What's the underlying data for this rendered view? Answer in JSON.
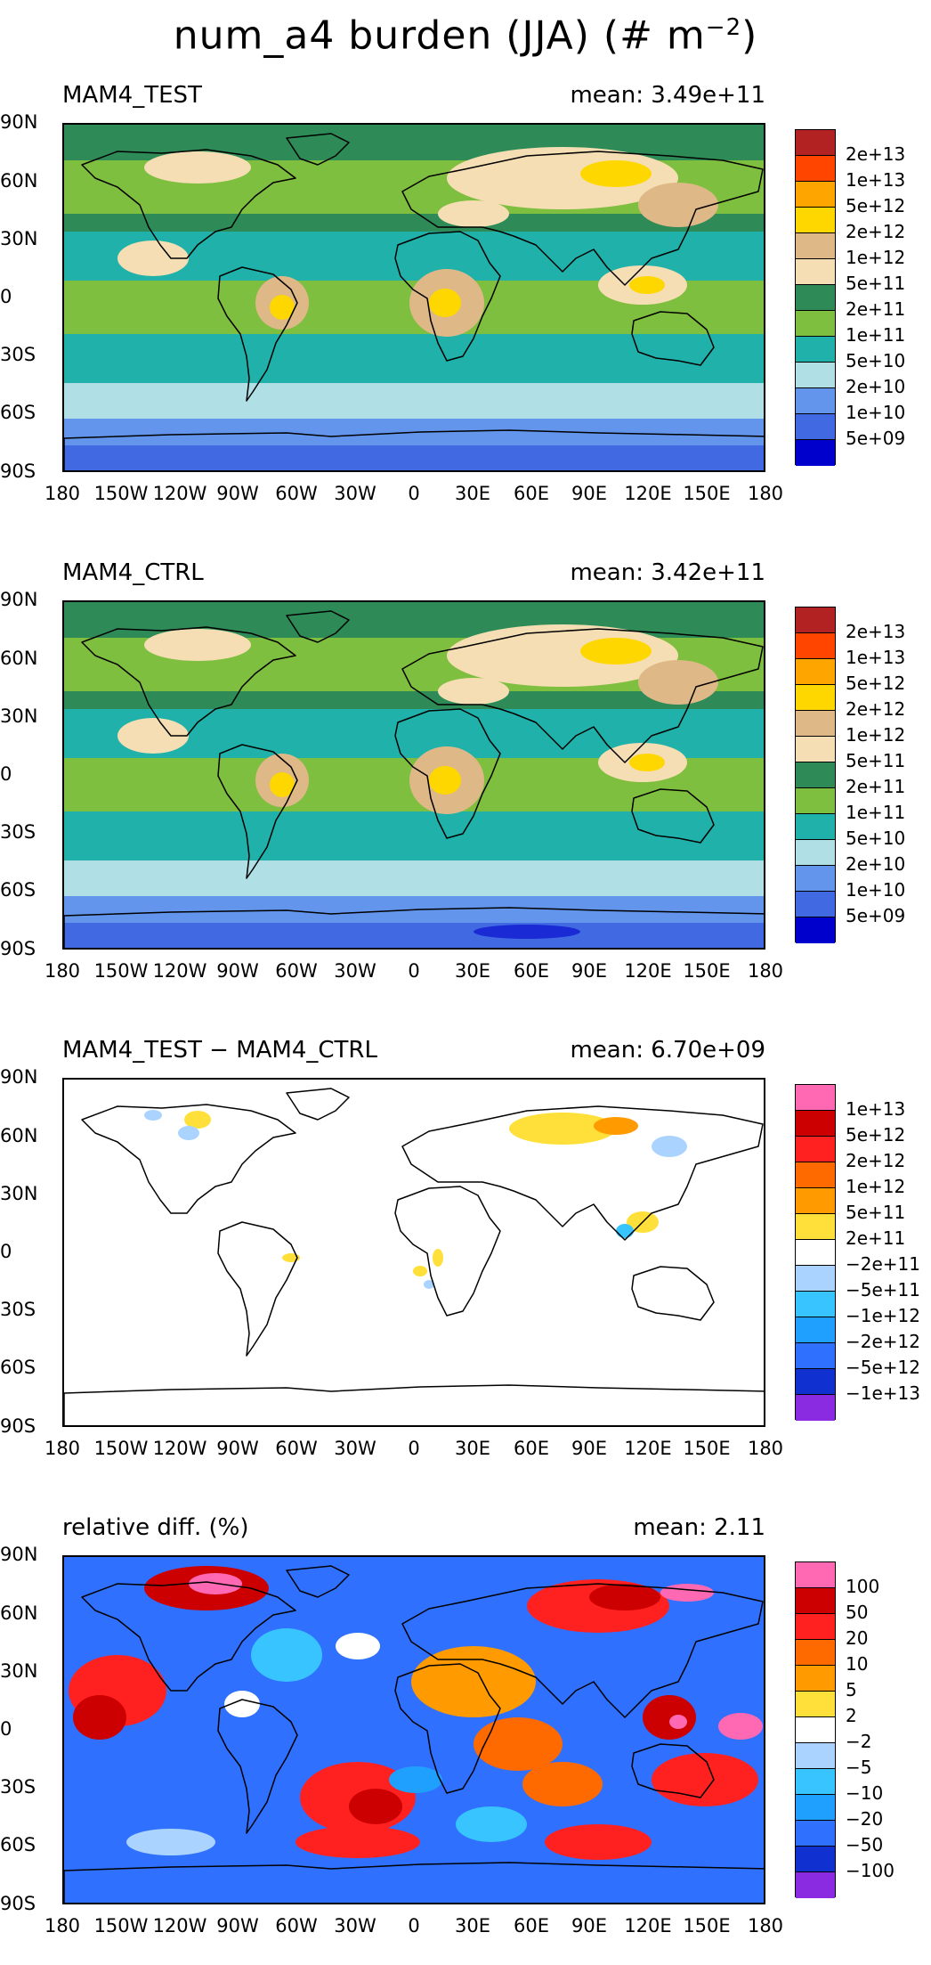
{
  "title": {
    "main": "num_a4 burden (JJA) (# m",
    "sup": "−2",
    "close": ")"
  },
  "lat_labels": [
    "90N",
    "60N",
    "30N",
    "0",
    "30S",
    "60S",
    "90S"
  ],
  "lon_labels": [
    "180",
    "150W",
    "120W",
    "90W",
    "60W",
    "30W",
    "0",
    "30E",
    "60E",
    "90E",
    "120E",
    "150E",
    "180"
  ],
  "panels": [
    {
      "label": "MAM4_TEST",
      "mean": "mean: 3.49e+11",
      "type": "abs",
      "colorbar": {
        "colors": [
          "#b22222",
          "#ff4500",
          "#ffa500",
          "#ffd700",
          "#deb887",
          "#f5deb3",
          "#2e8b57",
          "#7fbf3f",
          "#20b2aa",
          "#b0e0e6",
          "#6495ed",
          "#4169e1",
          "#0000cd"
        ],
        "labels": [
          "2e+13",
          "1e+13",
          "5e+12",
          "2e+12",
          "1e+12",
          "5e+11",
          "2e+11",
          "1e+11",
          "5e+10",
          "2e+10",
          "1e+10",
          "5e+09"
        ]
      }
    },
    {
      "label": "MAM4_CTRL",
      "mean": "mean: 3.42e+11",
      "type": "abs",
      "colorbar": {
        "colors": [
          "#b22222",
          "#ff4500",
          "#ffa500",
          "#ffd700",
          "#deb887",
          "#f5deb3",
          "#2e8b57",
          "#7fbf3f",
          "#20b2aa",
          "#b0e0e6",
          "#6495ed",
          "#4169e1",
          "#0000cd"
        ],
        "labels": [
          "2e+13",
          "1e+13",
          "5e+12",
          "2e+12",
          "1e+12",
          "5e+11",
          "2e+11",
          "1e+11",
          "5e+10",
          "2e+10",
          "1e+10",
          "5e+09"
        ]
      }
    },
    {
      "label": "MAM4_TEST − MAM4_CTRL",
      "mean": "mean: 6.70e+09",
      "type": "diff",
      "colorbar": {
        "colors": [
          "#ff69b4",
          "#cc0000",
          "#ff2020",
          "#ff6a00",
          "#ff9a00",
          "#ffe03a",
          "#ffffff",
          "#aad4ff",
          "#38c4ff",
          "#1fa0ff",
          "#3070ff",
          "#1030d0",
          "#8a2be2"
        ],
        "labels": [
          "1e+13",
          "5e+12",
          "2e+12",
          "1e+12",
          "5e+11",
          "2e+11",
          "−2e+11",
          "−5e+11",
          "−1e+12",
          "−2e+12",
          "−5e+12",
          "−1e+13"
        ]
      }
    },
    {
      "label": "relative diff. (%)",
      "mean": "mean:  2.11",
      "type": "rel",
      "colorbar": {
        "colors": [
          "#ff69b4",
          "#cc0000",
          "#ff2020",
          "#ff6a00",
          "#ff9a00",
          "#ffe03a",
          "#ffffff",
          "#aad4ff",
          "#38c4ff",
          "#1fa0ff",
          "#3070ff",
          "#1030d0",
          "#8a2be2"
        ],
        "labels": [
          "100",
          "50",
          "20",
          "10",
          "5",
          "2",
          "−2",
          "−5",
          "−10",
          "−20",
          "−50",
          "−100"
        ]
      }
    }
  ]
}
